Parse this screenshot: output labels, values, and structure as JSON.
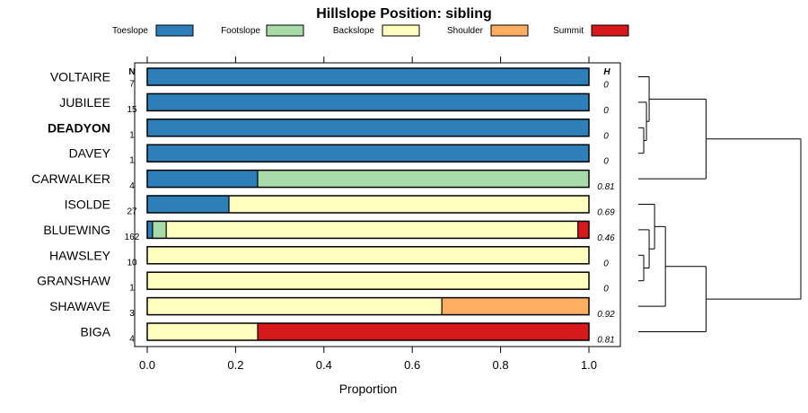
{
  "chart_data": {
    "type": "bar",
    "stacked": true,
    "orientation": "horizontal",
    "title": "Hillslope Position: sibling",
    "xlabel": "Proportion",
    "xlim": [
      0,
      1
    ],
    "xticks": [
      "0.0",
      "0.2",
      "0.4",
      "0.6",
      "0.8",
      "1.0"
    ],
    "n_header": "N",
    "h_header": "H",
    "legend": [
      {
        "name": "Toeslope",
        "color": "#2C7FB8"
      },
      {
        "name": "Footslope",
        "color": "#A8DBA8"
      },
      {
        "name": "Backslope",
        "color": "#FFFFBF"
      },
      {
        "name": "Shoulder",
        "color": "#FDAE61"
      },
      {
        "name": "Summit",
        "color": "#D7191C"
      }
    ],
    "categories": [
      "VOLTAIRE",
      "JUBILEE",
      "DEADYON",
      "DAVEY",
      "CARWALKER",
      "ISOLDE",
      "BLUEWING",
      "HAWSLEY",
      "GRANSHAW",
      "SHAWAVE",
      "BIGA"
    ],
    "highlight": "DEADYON",
    "n": [
      "7",
      "15",
      "1",
      "1",
      "4",
      "27",
      "162",
      "10",
      "1",
      "3",
      "4"
    ],
    "h": [
      "0",
      "0",
      "0",
      "0",
      "0.81",
      "0.69",
      "0.46",
      "0",
      "0",
      "0.92",
      "0.81"
    ],
    "series": [
      {
        "name": "Toeslope",
        "values": [
          1,
          1,
          1,
          1,
          0.25,
          0.185,
          0.012,
          0,
          0,
          0,
          0
        ]
      },
      {
        "name": "Footslope",
        "values": [
          0,
          0,
          0,
          0,
          0.75,
          0,
          0.031,
          0,
          0,
          0,
          0
        ]
      },
      {
        "name": "Backslope",
        "values": [
          0,
          0,
          0,
          0,
          0,
          0.815,
          0.932,
          1,
          1,
          0.667,
          0.25
        ]
      },
      {
        "name": "Shoulder",
        "values": [
          0,
          0,
          0,
          0,
          0,
          0,
          0,
          0,
          0,
          0.333,
          0
        ]
      },
      {
        "name": "Summit",
        "values": [
          0,
          0,
          0,
          0,
          0,
          0,
          0.025,
          0,
          0,
          0,
          0.75
        ]
      }
    ],
    "dendrogram": {
      "description": "hierarchical clustering of rows",
      "merges": [
        {
          "a": 2,
          "b": 3,
          "height": 0.02
        },
        {
          "a": 1,
          "b": "m0",
          "height": 0.03
        },
        {
          "a": 0,
          "b": "m1",
          "height": 0.04
        },
        {
          "a": 7,
          "b": 8,
          "height": 0.02
        },
        {
          "a": 6,
          "b": "m3",
          "height": 0.04
        },
        {
          "a": 5,
          "b": "m4",
          "height": 0.06
        },
        {
          "a": 9,
          "b": "m5",
          "height": 0.1
        },
        {
          "a": 4,
          "b": "m2",
          "height": 0.25
        },
        {
          "a": "m6",
          "b": 10,
          "height": 0.25
        },
        {
          "a": "m7",
          "b": "m8",
          "height": 0.6
        }
      ]
    }
  }
}
